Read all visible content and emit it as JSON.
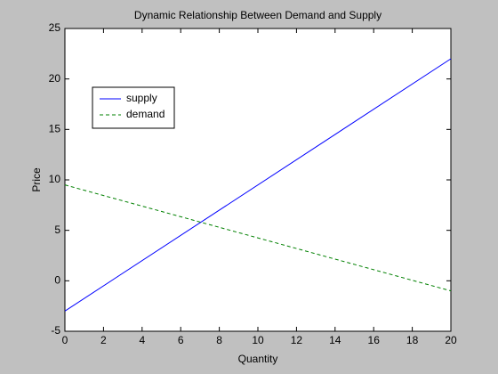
{
  "chart_data": {
    "type": "line",
    "title": "Dynamic Relationship Between Demand and Supply",
    "x_label": "Quantity",
    "y_label": "Price",
    "x": [
      0,
      20
    ],
    "series": [
      {
        "name": "supply",
        "color": "#0000ff",
        "dashed": false,
        "values": [
          -3,
          22
        ]
      },
      {
        "name": "demand",
        "color": "#008000",
        "dashed": true,
        "values": [
          9.5,
          -1
        ]
      }
    ],
    "xlim": [
      0,
      20
    ],
    "xticks": [
      0,
      2,
      4,
      6,
      8,
      10,
      12,
      14,
      16,
      18,
      20
    ],
    "ylim": [
      -5,
      25
    ],
    "yticks": [
      -5,
      0,
      5,
      10,
      15,
      20,
      25
    ],
    "grid": false,
    "legend": "upper left"
  }
}
